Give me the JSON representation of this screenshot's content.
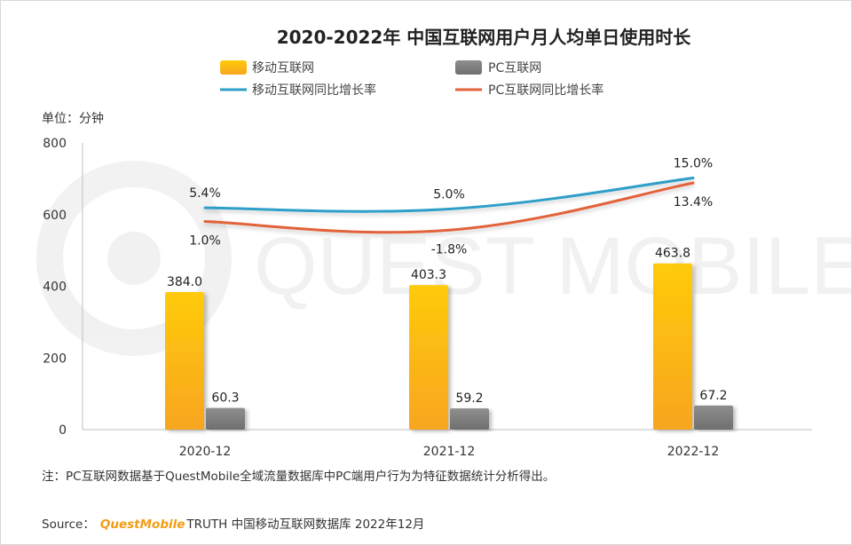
{
  "chart_data": {
    "type": "bar",
    "title": "2020-2022年 中国互联网用户月人均单日使用时长",
    "unit_label": "单位：分钟",
    "categories": [
      "2020-12",
      "2021-12",
      "2022-12"
    ],
    "ylim": [
      0,
      800
    ],
    "yticks": [
      "0",
      "200",
      "400",
      "600",
      "800"
    ],
    "series": [
      {
        "name": "移动互联网",
        "kind": "bar",
        "values": [
          384.0,
          403.3,
          463.8
        ],
        "labels": [
          "384.0",
          "403.3",
          "463.8"
        ],
        "color": "#fbb715"
      },
      {
        "name": "PC互联网",
        "kind": "bar",
        "values": [
          60.3,
          59.2,
          67.2
        ],
        "labels": [
          "60.3",
          "59.2",
          "67.2"
        ],
        "color": "#808080"
      },
      {
        "name": "移动互联网同比增长率",
        "kind": "line",
        "values": [
          5.4,
          5.0,
          15.0
        ],
        "labels": [
          "5.4%",
          "5.0%",
          "15.0%"
        ],
        "color": "#2e9fc8"
      },
      {
        "name": "PC互联网同比增长率",
        "kind": "line",
        "values": [
          1.0,
          -1.8,
          13.4
        ],
        "labels": [
          "1.0%",
          "-1.8%",
          "13.4%"
        ],
        "color": "#e2623a"
      }
    ],
    "watermark": "QUEST MOBILE",
    "note": "注：PC互联网数据基于QuestMobile全域流量数据库中PC端用户行为为特征数据统计分析得出。",
    "source": {
      "prefix": "Source：",
      "brand": "QuestMobile",
      "suffix": "TRUTH 中国移动互联网数据库 2022年12月"
    }
  }
}
